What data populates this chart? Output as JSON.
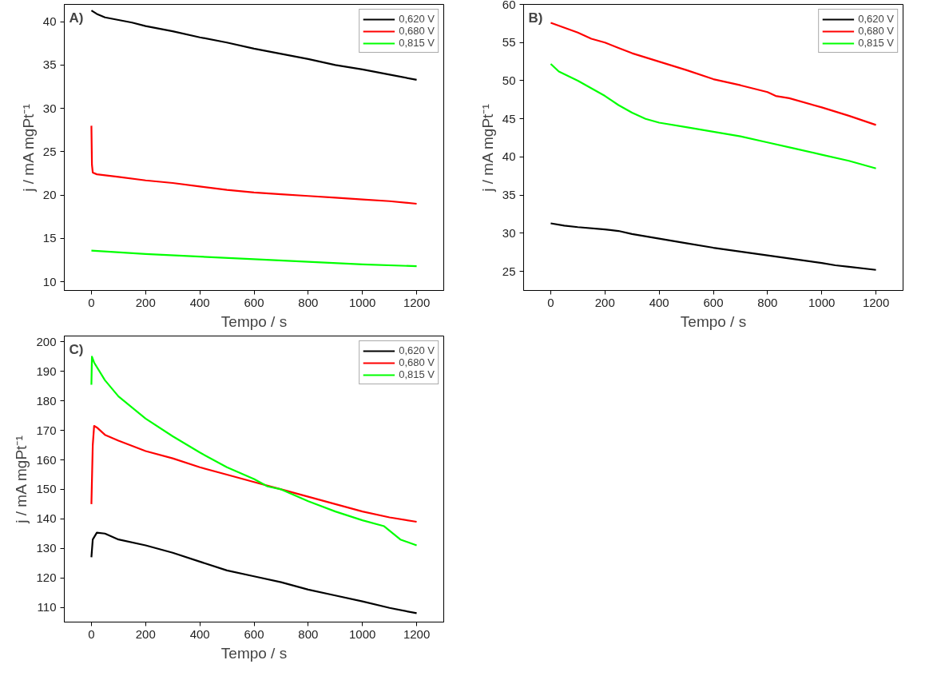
{
  "chart_data": [
    {
      "type": "line",
      "annotations": [
        "A)"
      ],
      "xlabel": "Tempo / s",
      "ylabel": "j / mA mgPt⁻¹",
      "xlim": [
        -100,
        1300
      ],
      "ylim": [
        9,
        42
      ],
      "xticks": [
        0,
        200,
        400,
        600,
        800,
        1000,
        1200
      ],
      "yticks": [
        10,
        15,
        20,
        25,
        30,
        35,
        40
      ],
      "grid": false,
      "legend": "top right",
      "line_style": "solid",
      "marker": "none",
      "series": [
        {
          "name": "0,620 V",
          "color": "#000000",
          "x": [
            0,
            20,
            50,
            100,
            150,
            200,
            300,
            400,
            500,
            600,
            700,
            800,
            900,
            1000,
            1100,
            1200
          ],
          "values": [
            41.3,
            40.9,
            40.5,
            40.2,
            39.9,
            39.5,
            38.9,
            38.2,
            37.6,
            36.9,
            36.3,
            35.7,
            35.0,
            34.5,
            33.9,
            33.3
          ]
        },
        {
          "name": "0,680 V",
          "color": "#ff0000",
          "x": [
            0,
            2,
            5,
            20,
            100,
            200,
            300,
            400,
            500,
            600,
            700,
            800,
            900,
            1000,
            1100,
            1200
          ],
          "values": [
            28.0,
            23.5,
            22.6,
            22.4,
            22.1,
            21.7,
            21.4,
            21.0,
            20.6,
            20.3,
            20.1,
            19.9,
            19.7,
            19.5,
            19.3,
            19.0
          ]
        },
        {
          "name": "0,815 V",
          "color": "#00ff00",
          "x": [
            0,
            200,
            400,
            600,
            800,
            1000,
            1200
          ],
          "values": [
            13.6,
            13.2,
            12.9,
            12.6,
            12.3,
            12.0,
            11.8
          ]
        }
      ]
    },
    {
      "type": "line",
      "annotations": [
        "B)"
      ],
      "xlabel": "Tempo / s",
      "ylabel": "j / mA mgPt⁻¹",
      "xlim": [
        -100,
        1300
      ],
      "ylim": [
        22.5,
        60
      ],
      "xticks": [
        0,
        200,
        400,
        600,
        800,
        1000,
        1200
      ],
      "yticks": [
        25,
        30,
        35,
        40,
        45,
        50,
        55,
        60
      ],
      "grid": false,
      "legend": "top right",
      "line_style": "solid",
      "marker": "none",
      "series": [
        {
          "name": "0,620 V",
          "color": "#000000",
          "x": [
            0,
            50,
            100,
            200,
            250,
            300,
            400,
            500,
            600,
            700,
            800,
            900,
            1000,
            1050,
            1100,
            1200
          ],
          "values": [
            31.3,
            31.0,
            30.8,
            30.5,
            30.3,
            29.9,
            29.3,
            28.7,
            28.1,
            27.6,
            27.1,
            26.6,
            26.1,
            25.8,
            25.6,
            25.2
          ]
        },
        {
          "name": "0,680 V",
          "color": "#ff0000",
          "x": [
            0,
            100,
            150,
            200,
            250,
            300,
            400,
            500,
            600,
            700,
            800,
            830,
            880,
            1000,
            1100,
            1200
          ],
          "values": [
            57.6,
            56.3,
            55.5,
            55.0,
            54.3,
            53.6,
            52.5,
            51.4,
            50.2,
            49.4,
            48.5,
            48.0,
            47.7,
            46.5,
            45.4,
            44.2
          ]
        },
        {
          "name": "0,815 V",
          "color": "#00ff00",
          "x": [
            0,
            30,
            100,
            200,
            250,
            300,
            350,
            400,
            500,
            600,
            700,
            800,
            900,
            1000,
            1100,
            1200
          ],
          "values": [
            52.2,
            51.2,
            50.0,
            48.0,
            46.8,
            45.8,
            45.0,
            44.5,
            43.9,
            43.3,
            42.7,
            41.9,
            41.1,
            40.3,
            39.5,
            38.5
          ]
        }
      ]
    },
    {
      "type": "line",
      "annotations": [
        "C)"
      ],
      "xlabel": "Tempo / s",
      "ylabel": "j / mA mgPt⁻¹",
      "xlim": [
        -100,
        1300
      ],
      "ylim": [
        105,
        202
      ],
      "xticks": [
        0,
        200,
        400,
        600,
        800,
        1000,
        1200
      ],
      "yticks": [
        110,
        120,
        130,
        140,
        150,
        160,
        170,
        180,
        190,
        200
      ],
      "grid": false,
      "legend": "top right",
      "line_style": "solid",
      "marker": "none",
      "series": [
        {
          "name": "0,620 V",
          "color": "#000000",
          "x": [
            0,
            5,
            20,
            50,
            100,
            200,
            300,
            400,
            500,
            600,
            700,
            800,
            900,
            1000,
            1100,
            1200
          ],
          "values": [
            127,
            133,
            135.3,
            135,
            133,
            131,
            128.5,
            125.5,
            122.5,
            120.5,
            118.5,
            116,
            114,
            112,
            109.8,
            108
          ]
        },
        {
          "name": "0,680 V",
          "color": "#ff0000",
          "x": [
            0,
            5,
            10,
            20,
            50,
            100,
            200,
            300,
            400,
            500,
            600,
            700,
            800,
            900,
            1000,
            1100,
            1200
          ],
          "values": [
            145,
            165,
            171.5,
            171,
            168.5,
            166.5,
            163,
            160.5,
            157.5,
            155,
            152.5,
            150,
            147.5,
            145,
            142.5,
            140.5,
            139
          ]
        },
        {
          "name": "0,815 V",
          "color": "#00ff00",
          "x": [
            0,
            2,
            10,
            50,
            100,
            200,
            300,
            400,
            500,
            600,
            650,
            700,
            800,
            900,
            1000,
            1080,
            1100,
            1140,
            1200
          ],
          "values": [
            185.5,
            195,
            193,
            187,
            181.5,
            174,
            168,
            162.5,
            157.5,
            153.5,
            151,
            150,
            146,
            142.5,
            139.5,
            137.5,
            136,
            133,
            131
          ]
        }
      ]
    }
  ]
}
